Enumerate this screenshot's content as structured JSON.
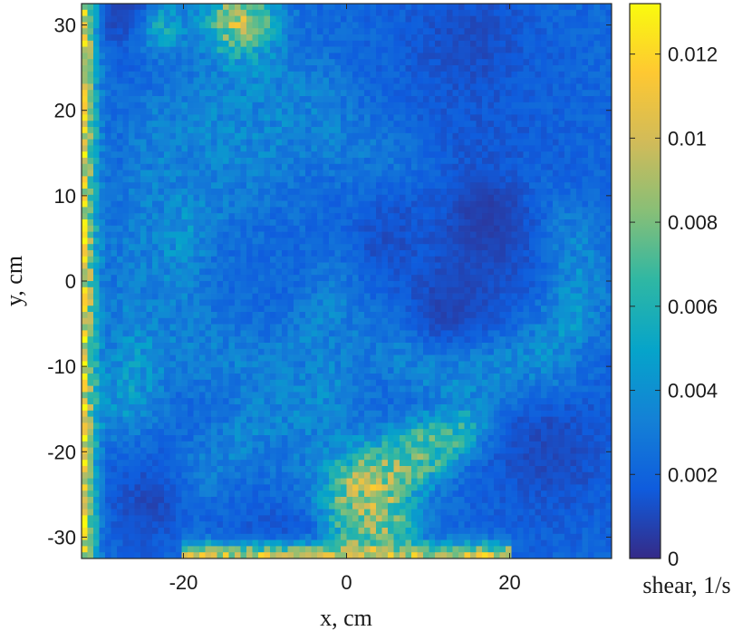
{
  "chart_data": {
    "type": "heatmap",
    "title": "",
    "xlabel": "x, cm",
    "ylabel": "y, cm",
    "colorbar_label": "shear, 1/s",
    "xlim": [
      -32.5,
      32.5
    ],
    "ylim": [
      -32.5,
      32.5
    ],
    "x_ticks": [
      -20,
      0,
      20
    ],
    "x_tick_labels": [
      "-20",
      "0",
      "20"
    ],
    "y_ticks": [
      -30,
      -20,
      -10,
      0,
      10,
      20,
      30
    ],
    "y_tick_labels": [
      "-30",
      "-20",
      "-10",
      "0",
      "10",
      "20",
      "30"
    ],
    "clim": [
      0,
      0.0132
    ],
    "colorbar_ticks": [
      0,
      0.002,
      0.004,
      0.006,
      0.008,
      0.01,
      0.012
    ],
    "colorbar_tick_labels": [
      "0",
      "0.002",
      "0.004",
      "0.006",
      "0.008",
      "0.01",
      "0.012"
    ],
    "colormap": "parula",
    "colormap_stops": [
      "#352a87",
      "#0f5cdd",
      "#1481d6",
      "#06a4ca",
      "#2eb7a4",
      "#87bf77",
      "#d1bb59",
      "#fec832",
      "#f9fb0e"
    ],
    "grid": false,
    "background_level": 0.0022,
    "features": [
      {
        "shape": "band",
        "from": [
          -7,
          -27
        ],
        "to": [
          10,
          -20
        ],
        "width": 2.5,
        "level": 0.0065
      },
      {
        "shape": "band",
        "from": [
          -5,
          -15
        ],
        "to": [
          6,
          12
        ],
        "width": 3.0,
        "level": 0.0045
      },
      {
        "shape": "band",
        "from": [
          -27,
          -14
        ],
        "to": [
          -20,
          8
        ],
        "width": 3.0,
        "level": 0.0045
      },
      {
        "shape": "band",
        "from": [
          -20,
          -25
        ],
        "to": [
          -5,
          -12
        ],
        "width": 2.5,
        "level": 0.0038
      },
      {
        "shape": "band",
        "from": [
          0,
          -25
        ],
        "to": [
          15,
          -17
        ],
        "width": 2.0,
        "level": 0.0075
      },
      {
        "shape": "band",
        "from": [
          8,
          -8
        ],
        "to": [
          25,
          -12
        ],
        "width": 2.5,
        "level": 0.0038
      },
      {
        "shape": "band",
        "from": [
          -22,
          18
        ],
        "to": [
          -5,
          22
        ],
        "width": 3.0,
        "level": 0.0032
      },
      {
        "shape": "ring",
        "center": [
          17,
          0
        ],
        "radius": 11,
        "width": 2.8,
        "level": 0.0045
      },
      {
        "shape": "ring",
        "center": [
          -10,
          5
        ],
        "radius": 15,
        "width": 3.0,
        "level": 0.0033
      },
      {
        "shape": "blob",
        "center": [
          -13,
          17
        ],
        "radius": 6,
        "level": 0.0036
      },
      {
        "shape": "blob",
        "center": [
          -5,
          -22
        ],
        "radius": 5,
        "level": 0.0033
      },
      {
        "shape": "blob",
        "center": [
          2,
          -26
        ],
        "radius": 3.5,
        "level": 0.0105
      },
      {
        "shape": "blob",
        "center": [
          4,
          -29
        ],
        "radius": 2.5,
        "level": 0.0085
      },
      {
        "shape": "blob",
        "center": [
          0,
          -28.5
        ],
        "radius": 2.0,
        "level": 0.009
      },
      {
        "shape": "blob",
        "center": [
          -13,
          30.5
        ],
        "radius": 3.0,
        "level": 0.0095
      },
      {
        "shape": "blob",
        "center": [
          -23,
          30
        ],
        "radius": 2.0,
        "level": 0.007
      },
      {
        "shape": "blob",
        "center": [
          17,
          8
        ],
        "radius": 7,
        "level": 0.0006
      },
      {
        "shape": "blob",
        "center": [
          12,
          -3
        ],
        "radius": 4.5,
        "level": 0.0008
      },
      {
        "shape": "blob",
        "center": [
          25,
          -20
        ],
        "radius": 6,
        "level": 0.001
      },
      {
        "shape": "blob",
        "center": [
          15,
          28
        ],
        "radius": 6,
        "level": 0.0011
      },
      {
        "shape": "blob",
        "center": [
          -8,
          -30
        ],
        "radius": 5,
        "level": 0.0012
      },
      {
        "shape": "blob",
        "center": [
          -28,
          32
        ],
        "radius": 3.5,
        "level": 0.0008
      },
      {
        "shape": "blob",
        "center": [
          -24,
          -26
        ],
        "radius": 4,
        "level": 0.001
      },
      {
        "shape": "blob",
        "center": [
          5,
          5
        ],
        "radius": 5,
        "level": 0.0012
      },
      {
        "shape": "edge",
        "side": "left",
        "width": 1.2,
        "level": 0.011
      },
      {
        "shape": "edge",
        "side": "bottom",
        "span": [
          -20,
          20
        ],
        "width": 1.2,
        "level": 0.01
      }
    ]
  }
}
